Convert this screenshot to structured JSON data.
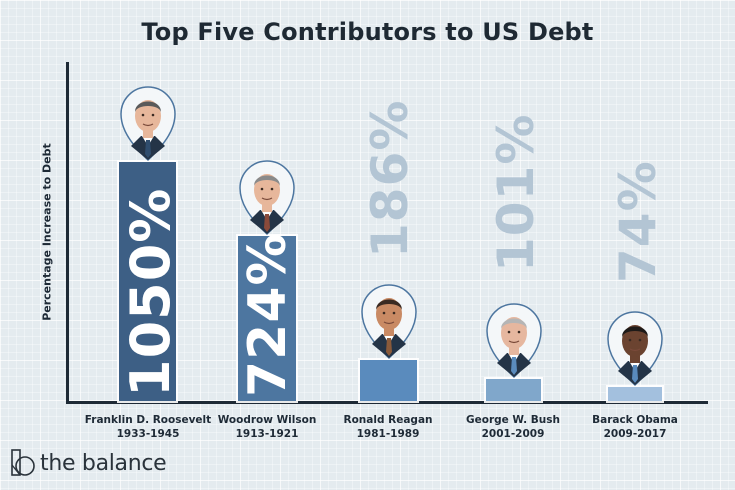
{
  "title": "Top Five Contributors to US Debt",
  "ylabel": "Percentage Increase to Debt",
  "brand": {
    "name": "the balance",
    "icon": "the-balance-logo-icon"
  },
  "colors": {
    "background": "#e4ebef",
    "axis": "#1e2a36",
    "bars": [
      "#3d5f85",
      "#4d76a0",
      "#5a8bbd",
      "#80a7cb",
      "#a3c0de"
    ],
    "outside_label": "#b3c5d4"
  },
  "presidents": [
    {
      "name": "Franklin D. Roosevelt",
      "years": "1933-1945",
      "value_label": "1050%",
      "value": 1050,
      "portrait": "fdr-portrait-icon"
    },
    {
      "name": "Woodrow Wilson",
      "years": "1913-1921",
      "value_label": "724%",
      "value": 724,
      "portrait": "wilson-portrait-icon"
    },
    {
      "name": "Ronald Reagan",
      "years": "1981-1989",
      "value_label": "186%",
      "value": 186,
      "portrait": "reagan-portrait-icon"
    },
    {
      "name": "George W. Bush",
      "years": "2001-2009",
      "value_label": "101%",
      "value": 101,
      "portrait": "bush-portrait-icon"
    },
    {
      "name": "Barack Obama",
      "years": "2009-2017",
      "value_label": "74%",
      "value": 74,
      "portrait": "obama-portrait-icon"
    }
  ],
  "chart_data": {
    "type": "bar",
    "title": "Top Five Contributors to US Debt",
    "xlabel": "",
    "ylabel": "Percentage Increase to Debt",
    "categories": [
      "Franklin D. Roosevelt 1933-1945",
      "Woodrow Wilson 1913-1921",
      "Ronald Reagan 1981-1989",
      "George W. Bush 2001-2009",
      "Barack Obama 2009-2017"
    ],
    "values": [
      1050,
      724,
      186,
      101,
      74
    ],
    "value_labels": [
      "1050%",
      "724%",
      "186%",
      "101%",
      "74%"
    ],
    "units": "%",
    "grid": false,
    "legend": null,
    "orientation": "vertical",
    "annotations": "Value labels rotated vertically; portrait pins above each bar"
  }
}
